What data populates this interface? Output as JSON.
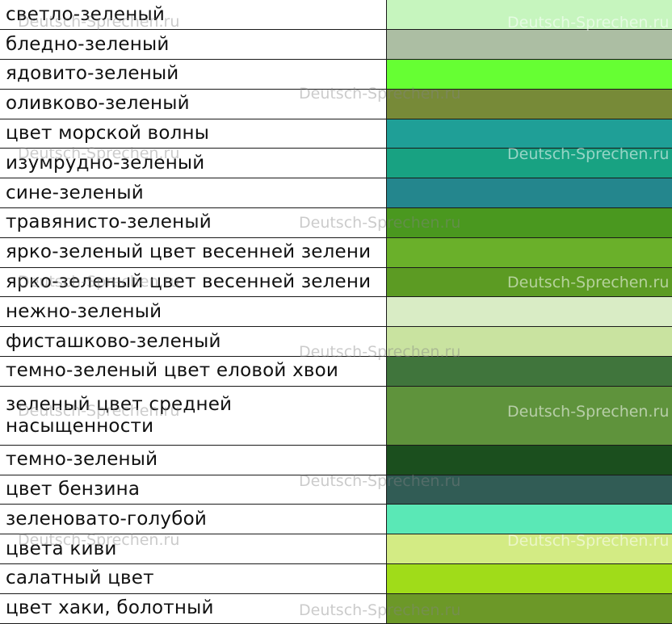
{
  "watermark": "Deutsch-Sprechen.ru",
  "rows": [
    {
      "name": "светло-зеленый",
      "color": "#c6f5be"
    },
    {
      "name": "бледно-зеленый",
      "color": "#acbea3"
    },
    {
      "name": "ядовито-зеленый",
      "color": "#66ff33"
    },
    {
      "name": "оливково-зеленый",
      "color": "#778a38"
    },
    {
      "name": "цвет морской волны",
      "color": "#1f9f97"
    },
    {
      "name": "изумрудно-зеленый",
      "color": "#18a282"
    },
    {
      "name": "сине-зеленый",
      "color": "#24868d"
    },
    {
      "name": "травянисто-зеленый",
      "color": "#4a981f"
    },
    {
      "name": "ярко-зеленый цвет весенней зелени",
      "color": "#6ab02a"
    },
    {
      "name": "ярко-зеленый цвет весенней зелени",
      "color": "#5c9b23"
    },
    {
      "name": "нежно-зеленый",
      "color": "#d9ecc5"
    },
    {
      "name": "фисташково-зеленый",
      "color": "#c9e3a0"
    },
    {
      "name": "темно-зеленый цвет еловой хвои",
      "color": "#40753c"
    },
    {
      "name": "зеленый цвет средней насыщенности",
      "color": "#5f933c"
    },
    {
      "name": "темно-зеленый",
      "color": "#1b4f1e"
    },
    {
      "name": "цвет бензина",
      "color": "#315c55"
    },
    {
      "name": "зеленовато-голубой",
      "color": "#5ae8b6"
    },
    {
      "name": "цвета киви",
      "color": "#d3eb84"
    },
    {
      "name": "салатный цвет",
      "color": "#a0dc19"
    },
    {
      "name": "цвет хаки, болотный",
      "color": "#6c9828"
    }
  ]
}
